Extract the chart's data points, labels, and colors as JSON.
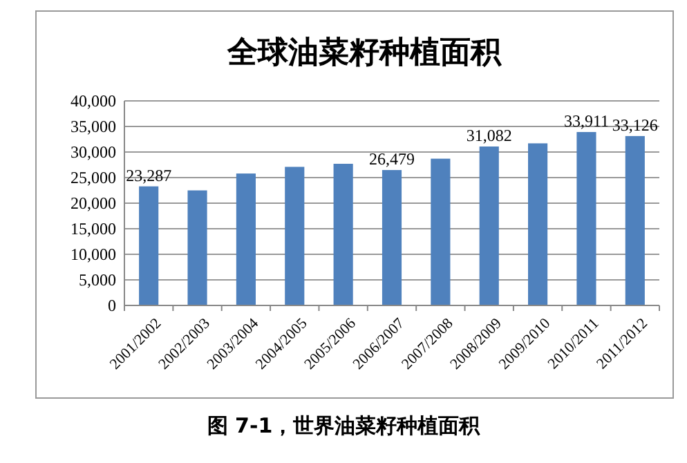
{
  "chart_data": {
    "type": "bar",
    "title": "全球油菜籽种植面积",
    "categories": [
      "2001/2002",
      "2002/2003",
      "2003/2004",
      "2004/2005",
      "2005/2006",
      "2006/2007",
      "2007/2008",
      "2008/2009",
      "2009/2010",
      "2010/2011",
      "2011/2012"
    ],
    "values": [
      23287,
      22500,
      25800,
      27100,
      27700,
      26479,
      28700,
      31082,
      31700,
      33911,
      33126
    ],
    "value_labels": [
      "23,287",
      null,
      null,
      null,
      null,
      "26,479",
      null,
      "31,082",
      null,
      "33,911",
      "33,126"
    ],
    "color": "#4f81bd",
    "ylim": [
      0,
      40000
    ],
    "yticks": [
      {
        "value": 0,
        "label": "0"
      },
      {
        "value": 5000,
        "label": "5,000"
      },
      {
        "value": 10000,
        "label": "10,000"
      },
      {
        "value": 15000,
        "label": "15,000"
      },
      {
        "value": 20000,
        "label": "20,000"
      },
      {
        "value": 25000,
        "label": "25,000"
      },
      {
        "value": 30000,
        "label": "30,000"
      },
      {
        "value": 35000,
        "label": "35,000"
      },
      {
        "value": 40000,
        "label": "40,000"
      }
    ],
    "grid": "y",
    "annotations": [
      "图 7-1，世界油菜籽种植面积"
    ]
  }
}
